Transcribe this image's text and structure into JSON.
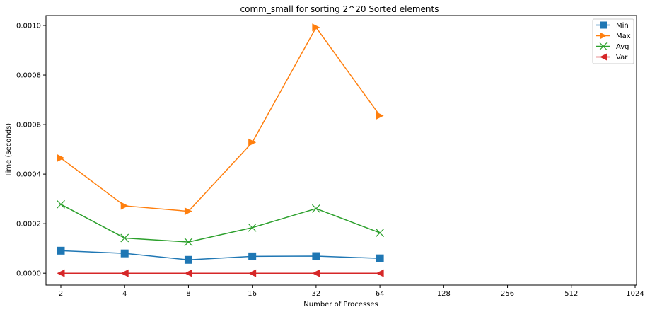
{
  "chart_data": {
    "type": "line",
    "title": "comm_small for sorting 2^20 Sorted elements",
    "xlabel": "Number of Processes",
    "ylabel": "Time (seconds)",
    "x_scale": "log2",
    "x_ticks": [
      "2",
      "4",
      "8",
      "16",
      "32",
      "64",
      "128",
      "256",
      "512",
      "1024"
    ],
    "x_tick_values": [
      2,
      4,
      8,
      16,
      32,
      64,
      128,
      256,
      512,
      1024
    ],
    "x": [
      2,
      4,
      8,
      16,
      32,
      64
    ],
    "ylim": [
      -4.8e-05,
      0.00104
    ],
    "y_ticks": [
      0,
      0.0002,
      0.0004,
      0.0006,
      0.0008,
      0.001
    ],
    "y_tick_labels": [
      "0.0000",
      "0.0002",
      "0.0004",
      "0.0006",
      "0.0008",
      "0.0010"
    ],
    "grid": false,
    "legend": "top-right",
    "series": [
      {
        "name": "Min",
        "color": "#1f77b4",
        "marker": "square",
        "values": [
          9.1e-05,
          8e-05,
          5.4e-05,
          6.8e-05,
          6.9e-05,
          6e-05
        ]
      },
      {
        "name": "Max",
        "color": "#ff7f0e",
        "marker": "triangle-right",
        "values": [
          0.000465,
          0.000272,
          0.00025,
          0.000528,
          0.000992,
          0.000636
        ]
      },
      {
        "name": "Avg",
        "color": "#2ca02c",
        "marker": "x",
        "values": [
          0.000278,
          0.000142,
          0.000126,
          0.000184,
          0.000261,
          0.000163
        ]
      },
      {
        "name": "Var",
        "color": "#d62728",
        "marker": "triangle-left",
        "values": [
          0,
          0,
          0,
          0,
          0,
          0
        ]
      }
    ]
  }
}
